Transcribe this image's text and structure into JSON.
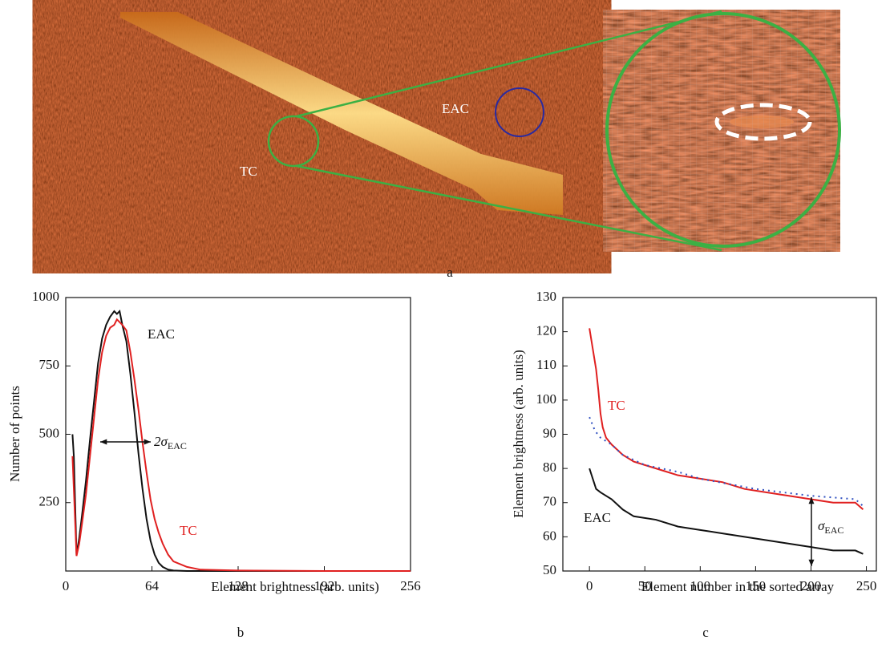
{
  "panel_a": {
    "labels": {
      "tc": "TC",
      "eac": "EAC"
    },
    "caption": "a"
  },
  "chart_data": [
    {
      "type": "line",
      "caption": "b",
      "x_label": "Element brightness (arb. units)",
      "y_label": "Number of points",
      "xlim": [
        0,
        256
      ],
      "ylim": [
        0,
        1000
      ],
      "xticks": [
        0,
        64,
        128,
        192,
        256
      ],
      "yticks": [
        250,
        500,
        750,
        1000
      ],
      "annotation": {
        "text": "2σ",
        "sub": "EAC"
      },
      "series": [
        {
          "name": "EAC",
          "color": "#111111",
          "x": [
            5,
            6,
            8,
            10,
            12,
            15,
            18,
            21,
            24,
            27,
            30,
            33,
            36,
            38,
            40,
            42,
            45,
            48,
            51,
            54,
            57,
            60,
            63,
            66,
            69,
            72,
            76,
            80,
            90,
            100,
            128,
            192,
            256
          ],
          "values": [
            500,
            420,
            60,
            120,
            200,
            330,
            480,
            620,
            760,
            850,
            900,
            930,
            950,
            940,
            950,
            900,
            840,
            720,
            580,
            430,
            300,
            190,
            110,
            60,
            30,
            15,
            5,
            2,
            0,
            0,
            0,
            0,
            0
          ]
        },
        {
          "name": "TC",
          "color": "#e02020",
          "x": [
            5,
            6,
            8,
            10,
            12,
            15,
            18,
            21,
            24,
            27,
            30,
            33,
            36,
            38,
            40,
            42,
            45,
            48,
            51,
            54,
            57,
            60,
            63,
            66,
            69,
            72,
            76,
            80,
            90,
            100,
            128,
            192,
            256
          ],
          "values": [
            420,
            300,
            55,
            100,
            170,
            280,
            420,
            560,
            700,
            800,
            860,
            890,
            900,
            920,
            910,
            900,
            880,
            800,
            700,
            590,
            470,
            360,
            260,
            190,
            140,
            100,
            60,
            35,
            15,
            5,
            2,
            0,
            0
          ]
        }
      ]
    },
    {
      "type": "line",
      "caption": "c",
      "x_label": "Element number in the sorted array",
      "y_label": "Element brightness (arb. units)",
      "xlim": [
        -24,
        259
      ],
      "ylim": [
        50,
        130
      ],
      "xticks": [
        0,
        50,
        100,
        150,
        200,
        250
      ],
      "yticks": [
        50,
        60,
        70,
        80,
        90,
        100,
        110,
        120,
        130
      ],
      "annotation": {
        "text": "σ",
        "sub": "EAC"
      },
      "series": [
        {
          "name": "TC",
          "color": "#e02020",
          "x": [
            0,
            2,
            4,
            6,
            8,
            10,
            12,
            15,
            20,
            30,
            40,
            50,
            60,
            70,
            80,
            100,
            120,
            140,
            160,
            180,
            200,
            220,
            240,
            247
          ],
          "values": [
            121,
            117,
            113,
            109,
            103,
            96,
            92,
            89,
            87,
            84,
            82,
            81,
            80,
            79,
            78,
            77,
            76,
            74,
            73,
            72,
            71,
            70,
            70,
            68
          ]
        },
        {
          "name": "EAC",
          "color": "#111111",
          "x": [
            0,
            3,
            6,
            10,
            20,
            30,
            40,
            60,
            80,
            100,
            120,
            140,
            160,
            180,
            200,
            220,
            240,
            247
          ],
          "values": [
            80,
            77,
            74,
            73,
            71,
            68,
            66,
            65,
            63,
            62,
            61,
            60,
            59,
            58,
            57,
            56,
            56,
            55
          ]
        },
        {
          "color": "#3050c0",
          "dashed": true,
          "x": [
            0,
            5,
            10,
            20,
            30,
            50,
            80,
            100,
            150,
            200,
            240,
            247
          ],
          "values": [
            95,
            91,
            89,
            87,
            84,
            81,
            79,
            77,
            74,
            72,
            71,
            69
          ]
        }
      ]
    }
  ]
}
